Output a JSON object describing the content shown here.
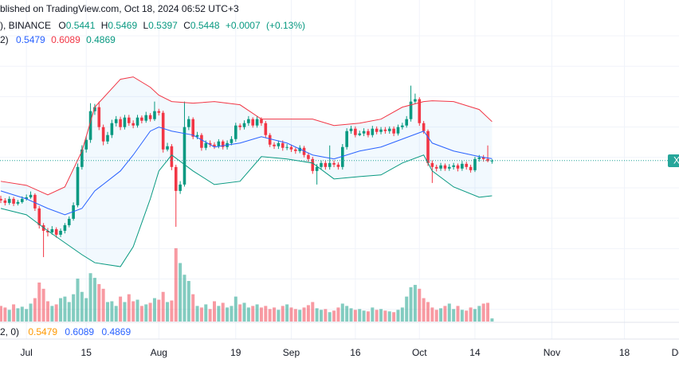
{
  "header": {
    "published": "blished on TradingView.com, Oct 18, 2024 06:52 UTC+3",
    "symbol": "), BINANCE",
    "ohlc_letters": [
      "O",
      "H",
      "L",
      "C"
    ],
    "change": {
      "value": 0.0007,
      "label": "+0.0007"
    },
    "change_pct": {
      "value": 0.13,
      "label": "(+0.13%)"
    },
    "bb_label": "2)",
    "pane2_label": "2, 0)",
    "symbol_badge": "X"
  },
  "chart_data": {
    "type": "candlestick",
    "ylim": [
      0.28,
      0.809
    ],
    "ygrid": [
      0.3,
      0.35,
      0.4,
      0.45,
      0.5,
      0.55,
      0.6,
      0.65,
      0.7,
      0.75
    ],
    "xticks": [
      {
        "value": 6,
        "label": "Jul"
      },
      {
        "value": 20,
        "label": "15"
      },
      {
        "value": 37,
        "label": "Aug"
      },
      {
        "value": 55,
        "label": "19"
      },
      {
        "value": 68,
        "label": "Sep"
      },
      {
        "value": 83,
        "label": "16"
      },
      {
        "value": 98,
        "label": "Oct"
      },
      {
        "value": 111,
        "label": "14"
      },
      {
        "value": 129,
        "label": "Nov"
      },
      {
        "value": 146,
        "label": "18"
      },
      {
        "value": 159,
        "label": "Dec"
      }
    ],
    "up_color": "#089981",
    "down_color": "#f23645",
    "open": [
      0.4818,
      0.4792,
      0.4752,
      0.4818,
      0.4739,
      0.4766,
      0.4818,
      0.4844,
      0.4884,
      0.4661,
      0.4385,
      0.4293,
      0.4267,
      0.4319,
      0.4228,
      0.4293,
      0.4385,
      0.449,
      0.4713,
      0.5343,
      0.5631,
      0.5789,
      0.6261,
      0.6327,
      0.5999,
      0.5763,
      0.5868,
      0.6064,
      0.613,
      0.5999,
      0.6156,
      0.6064,
      0.6025,
      0.6156,
      0.6104,
      0.6196,
      0.613,
      0.6261,
      0.6235,
      0.5631,
      0.5684,
      0.5343,
      0.4949,
      0.5054,
      0.5999,
      0.613,
      0.5841,
      0.5868,
      0.5658,
      0.5736,
      0.571,
      0.5684,
      0.5763,
      0.5671,
      0.5736,
      0.5802,
      0.6025,
      0.5999,
      0.6064,
      0.613,
      0.6025,
      0.613,
      0.6064,
      0.5868,
      0.571,
      0.5684,
      0.5736,
      0.5658,
      0.5671,
      0.5631,
      0.5605,
      0.5658,
      0.554,
      0.5474,
      0.5277,
      0.5343,
      0.5408,
      0.5343,
      0.5408,
      0.5382,
      0.5343,
      0.5671,
      0.5933,
      0.5973,
      0.5868,
      0.5894,
      0.5933,
      0.5868,
      0.5973,
      0.592,
      0.5959,
      0.5933,
      0.5973,
      0.5894,
      0.5999,
      0.6025,
      0.613,
      0.6419,
      0.6458,
      0.6064,
      0.5933,
      0.5408,
      0.5343,
      0.5317,
      0.5369,
      0.5317,
      0.5343,
      0.5369,
      0.5317,
      0.5395,
      0.5343,
      0.529,
      0.5474,
      0.55,
      0.5474,
      0.5441
    ],
    "high": [
      0.487,
      0.483,
      0.486,
      0.485,
      0.48,
      0.486,
      0.489,
      0.494,
      0.491,
      0.47,
      0.442,
      0.434,
      0.437,
      0.435,
      0.433,
      0.442,
      0.453,
      0.476,
      0.54,
      0.57,
      0.585,
      0.6392,
      0.638,
      0.6419,
      0.604,
      0.592,
      0.612,
      0.618,
      0.617,
      0.62,
      0.62,
      0.611,
      0.62,
      0.619,
      0.625,
      0.623,
      0.6419,
      0.63,
      0.627,
      0.574,
      0.572,
      0.538,
      0.511,
      0.6419,
      0.618,
      0.616,
      0.592,
      0.59,
      0.578,
      0.578,
      0.575,
      0.58,
      0.579,
      0.578,
      0.585,
      0.607,
      0.606,
      0.611,
      0.618,
      0.616,
      0.618,
      0.616,
      0.61,
      0.59,
      0.575,
      0.578,
      0.578,
      0.572,
      0.571,
      0.566,
      0.57,
      0.569,
      0.558,
      0.551,
      0.539,
      0.545,
      0.545,
      0.5697,
      0.545,
      0.542,
      0.572,
      0.598,
      0.602,
      0.601,
      0.594,
      0.598,
      0.597,
      0.602,
      0.601,
      0.6,
      0.6,
      0.601,
      0.601,
      0.604,
      0.607,
      0.618,
      0.6681,
      0.655,
      0.649,
      0.61,
      0.596,
      0.545,
      0.538,
      0.541,
      0.54,
      0.539,
      0.541,
      0.54,
      0.544,
      0.543,
      0.538,
      0.551,
      0.554,
      0.554,
      0.5697,
      0.5469
    ],
    "low": [
      0.475,
      0.471,
      0.472,
      0.47,
      0.471,
      0.474,
      0.479,
      0.482,
      0.462,
      0.433,
      0.386,
      0.42,
      0.423,
      0.418,
      0.419,
      0.425,
      0.435,
      0.446,
      0.468,
      0.53,
      0.558,
      0.574,
      0.62,
      0.595,
      0.57,
      0.572,
      0.582,
      0.601,
      0.595,
      0.596,
      0.602,
      0.598,
      0.599,
      0.606,
      0.607,
      0.609,
      0.61,
      0.619,
      0.558,
      0.56,
      0.529,
      0.4359,
      0.49,
      0.502,
      0.595,
      0.58,
      0.58,
      0.561,
      0.562,
      0.567,
      0.564,
      0.565,
      0.563,
      0.563,
      0.57,
      0.576,
      0.595,
      0.596,
      0.602,
      0.599,
      0.599,
      0.602,
      0.582,
      0.567,
      0.564,
      0.564,
      0.561,
      0.562,
      0.559,
      0.556,
      0.557,
      0.55,
      0.543,
      0.523,
      0.5054,
      0.53,
      0.53,
      0.53,
      0.534,
      0.53,
      0.53,
      0.563,
      0.589,
      0.583,
      0.585,
      0.585,
      0.583,
      0.583,
      0.588,
      0.588,
      0.589,
      0.589,
      0.585,
      0.586,
      0.596,
      0.599,
      0.609,
      0.638,
      0.602,
      0.589,
      0.536,
      0.508,
      0.527,
      0.528,
      0.528,
      0.528,
      0.53,
      0.527,
      0.528,
      0.53,
      0.525,
      0.526,
      0.543,
      0.543,
      0.542,
      0.5397
    ],
    "close": [
      0.4792,
      0.4752,
      0.4818,
      0.4739,
      0.4766,
      0.4818,
      0.4844,
      0.4884,
      0.4661,
      0.4385,
      0.4293,
      0.4267,
      0.4319,
      0.4228,
      0.4293,
      0.4385,
      0.449,
      0.4713,
      0.5343,
      0.5631,
      0.5789,
      0.6261,
      0.6327,
      0.5999,
      0.5763,
      0.5868,
      0.6064,
      0.613,
      0.5999,
      0.6156,
      0.6064,
      0.6025,
      0.6156,
      0.6104,
      0.6196,
      0.613,
      0.6261,
      0.6235,
      0.5631,
      0.5684,
      0.5343,
      0.4949,
      0.5054,
      0.5999,
      0.613,
      0.5841,
      0.5868,
      0.5658,
      0.5736,
      0.571,
      0.5684,
      0.5763,
      0.5671,
      0.5736,
      0.5802,
      0.6025,
      0.5999,
      0.6064,
      0.613,
      0.6025,
      0.613,
      0.6064,
      0.5868,
      0.571,
      0.5684,
      0.5736,
      0.5658,
      0.5671,
      0.5631,
      0.5605,
      0.5658,
      0.554,
      0.5474,
      0.5277,
      0.5343,
      0.5408,
      0.5343,
      0.5408,
      0.5382,
      0.5343,
      0.5671,
      0.5933,
      0.5973,
      0.5868,
      0.5894,
      0.5933,
      0.5868,
      0.5973,
      0.592,
      0.5959,
      0.5933,
      0.5973,
      0.5894,
      0.5999,
      0.6025,
      0.613,
      0.6419,
      0.6458,
      0.6064,
      0.5933,
      0.5408,
      0.5343,
      0.5317,
      0.5369,
      0.5317,
      0.5343,
      0.5369,
      0.5317,
      0.5395,
      0.5343,
      0.529,
      0.5474,
      0.55,
      0.5474,
      0.5441,
      0.5448
    ],
    "vlim": [
      0,
      1000
    ],
    "volume": [
      200,
      180,
      150,
      220,
      170,
      190,
      160,
      230,
      300,
      500,
      420,
      260,
      200,
      220,
      300,
      320,
      250,
      350,
      550,
      380,
      300,
      620,
      560,
      480,
      420,
      250,
      260,
      200,
      320,
      250,
      350,
      260,
      280,
      200,
      220,
      240,
      300,
      280,
      380,
      250,
      270,
      940,
      750,
      600,
      520,
      350,
      200,
      180,
      220,
      160,
      260,
      200,
      240,
      180,
      200,
      320,
      220,
      240,
      180,
      200,
      220,
      180,
      200,
      160,
      180,
      150,
      200,
      220,
      180,
      160,
      150,
      180,
      210,
      250,
      170,
      150,
      160,
      120,
      140,
      180,
      230,
      200,
      170,
      150,
      160,
      140,
      130,
      180,
      150,
      160,
      140,
      130,
      120,
      150,
      180,
      320,
      440,
      470,
      420,
      300,
      250,
      180,
      150,
      170,
      200,
      230,
      160,
      200,
      150,
      140,
      180,
      160,
      200,
      230,
      240,
      40
    ],
    "bands": {
      "x": [
        0,
        6,
        11,
        15,
        19,
        22,
        28,
        31,
        35,
        37,
        40,
        45,
        50,
        56,
        61,
        67,
        73,
        78,
        84,
        89,
        94,
        99,
        101,
        106,
        112,
        115
      ],
      "upper": [
        0.5107,
        0.5041,
        0.4884,
        0.5015,
        0.5605,
        0.6327,
        0.6786,
        0.6825,
        0.6655,
        0.6524,
        0.6419,
        0.6392,
        0.6419,
        0.6366,
        0.613,
        0.613,
        0.613,
        0.6025,
        0.6064,
        0.613,
        0.6327,
        0.6419,
        0.6432,
        0.6419,
        0.6288,
        0.6089
      ],
      "middle": [
        0.4949,
        0.4818,
        0.4661,
        0.4556,
        0.4661,
        0.4949,
        0.5277,
        0.554,
        0.5933,
        0.5999,
        0.5933,
        0.5868,
        0.5671,
        0.5736,
        0.5841,
        0.5736,
        0.554,
        0.5474,
        0.5605,
        0.5671,
        0.5802,
        0.5933,
        0.5736,
        0.5605,
        0.5514,
        0.5479
      ],
      "lower": [
        0.4661,
        0.4556,
        0.4293,
        0.4096,
        0.39,
        0.3768,
        0.3703,
        0.4031,
        0.4818,
        0.5277,
        0.554,
        0.5277,
        0.5054,
        0.5107,
        0.5513,
        0.5474,
        0.5408,
        0.5146,
        0.5185,
        0.5212,
        0.5408,
        0.554,
        0.5277,
        0.5015,
        0.4845,
        0.4869
      ],
      "upper_color": "#f23645",
      "middle_color": "#2962ff",
      "lower_color": "#089981",
      "fill_color": "#2196f3"
    }
  }
}
